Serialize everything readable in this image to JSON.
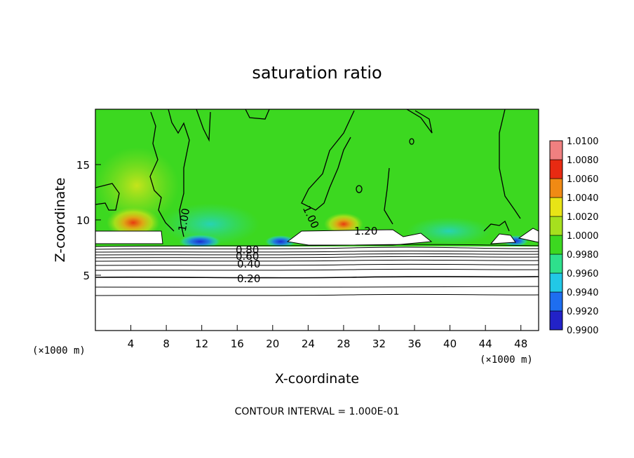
{
  "chart_data": {
    "type": "heatmap",
    "title": "saturation ratio",
    "xlabel": "X-coordinate",
    "ylabel": "Z-coordinate",
    "x_unit": "(×1000 m)",
    "x_unit_right": "(×1000 m)",
    "xlim": [
      0,
      50
    ],
    "ylim": [
      0,
      20
    ],
    "x_ticks": [
      4,
      8,
      12,
      16,
      20,
      24,
      28,
      32,
      36,
      40,
      44,
      48
    ],
    "y_ticks": [
      5,
      10,
      15
    ],
    "colorbar": {
      "labels": [
        "0.9900",
        "0.9920",
        "0.9940",
        "0.9960",
        "0.9980",
        "1.0000",
        "1.0020",
        "1.0040",
        "1.0060",
        "1.0080",
        "1.0100"
      ],
      "colors": [
        "#7a2fa8",
        "#2222c8",
        "#1e6ef0",
        "#22c8e6",
        "#2ee08c",
        "#3cd820",
        "#a6e01e",
        "#e8e416",
        "#f08a14",
        "#e82a12",
        "#f08080"
      ]
    },
    "contour_labels": [
      "0.20",
      "0.40",
      "0.60",
      "0.80",
      "1.00",
      "1.00",
      "1.20"
    ],
    "contour_interval_text": "CONTOUR INTERVAL = 1.000E-01"
  }
}
